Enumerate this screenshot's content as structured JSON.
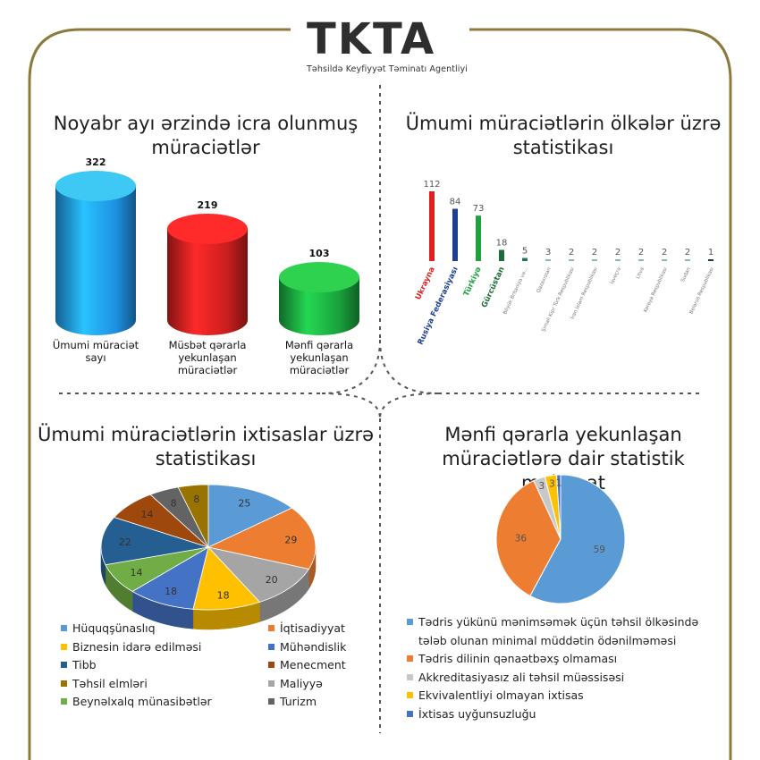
{
  "brand": {
    "logo_text": "TKTA",
    "subtitle": "Təhsildə Keyfiyyət Təminatı Agentliyi"
  },
  "colors": {
    "frame": "#8c7a3c",
    "divider": "#555555"
  },
  "panels": {
    "top_left_title": "Noyabr ayı ərzində icra olunmuş müraciətlər",
    "top_right_title": "Ümumi müraciətlərin ölkələr üzrə statistikası",
    "bottom_left_title": "Ümumi müraciətlərin ixtisaslar üzrə statistikası",
    "bottom_right_title": "Mənfi qərarla yekunlaşan müraciətlərə dair statistik məlumat"
  },
  "chart_data": [
    {
      "type": "bar",
      "title": "Noyabr ayı ərzində icra olunmuş müraciətlər",
      "categories": [
        "Ümumi müraciət sayı",
        "Müsbət qərarla yekunlaşan müraciətlər",
        "Mənfi qərarla yekunlaşan müraciətlər"
      ],
      "values": [
        322,
        219,
        103
      ],
      "colors": [
        "#1e90e0",
        "#c81e1e",
        "#1aa03c"
      ],
      "top_colors": [
        "#3ec9f5",
        "#ff2a2a",
        "#2fd24f"
      ],
      "ylim": [
        0,
        322
      ]
    },
    {
      "type": "bar",
      "title": "Ümumi müraciətlərin ölkələr üzrə statistikası",
      "categories": [
        "Ukrayna",
        "Rusiya Federasiyası",
        "Türkiyə",
        "Gürcüstan",
        "Böyük Britaniya və...",
        "Qazaxıstan",
        "Şimali Kipr Türk Respublikası",
        "İran İslam Respublikası",
        "İsveçrə",
        "Litva",
        "Koreya Respublikası",
        "Sudan",
        "Belarus Respublikası"
      ],
      "values": [
        112,
        84,
        73,
        18,
        5,
        3,
        2,
        2,
        2,
        2,
        2,
        2,
        1
      ],
      "colors": [
        "#e02020",
        "#1c3f94",
        "#20a040",
        "#1d6b3a",
        "#2e7060",
        "#8fb8a8",
        "#8fb8a8",
        "#8fb8a8",
        "#8fb8a8",
        "#8fb8a8",
        "#8fb8a8",
        "#8fb8a8",
        "#1e3a2a"
      ],
      "label_colors": [
        "#e02020",
        "#1c3f94",
        "#20a040",
        "#1d6b3a",
        "#777777",
        "#777777",
        "#777777",
        "#777777",
        "#777777",
        "#777777",
        "#777777",
        "#777777",
        "#777777"
      ],
      "ylim": [
        0,
        112
      ]
    },
    {
      "type": "pie",
      "title": "Ümumi müraciətlərin ixtisaslar üzrə statistikası",
      "slices": [
        {
          "name": "Hüquqşünaslıq",
          "value": 25,
          "color": "#5b9bd5"
        },
        {
          "name": "İqtisadiyyat",
          "value": 29,
          "color": "#ed7d31"
        },
        {
          "name": "Maliyyə",
          "value": 20,
          "color": "#a5a5a5"
        },
        {
          "name": "Biznesin idarə edilməsi",
          "value": 18,
          "color": "#ffc000"
        },
        {
          "name": "Mühəndislik",
          "value": 18,
          "color": "#4472c4"
        },
        {
          "name": "Beynəlxalq münasibətlər",
          "value": 14,
          "color": "#70ad47"
        },
        {
          "name": "Tibb",
          "value": 22,
          "color": "#255e91"
        },
        {
          "name": "Menecment",
          "value": 14,
          "color": "#9e480e"
        },
        {
          "name": "Turizm",
          "value": 8,
          "color": "#636363"
        },
        {
          "name": "Təhsil elmləri",
          "value": 8,
          "color": "#997300"
        }
      ],
      "legend": [
        {
          "name": "Hüquqşünaslıq",
          "color": "#5b9bd5"
        },
        {
          "name": "İqtisadiyyat",
          "color": "#ed7d31"
        },
        {
          "name": "Biznesin idarə edilməsi",
          "color": "#ffc000"
        },
        {
          "name": "Mühəndislik",
          "color": "#4472c4"
        },
        {
          "name": "Tibb",
          "color": "#255e91"
        },
        {
          "name": "Menecment",
          "color": "#9e480e"
        },
        {
          "name": "Təhsil elmləri",
          "color": "#997300"
        },
        {
          "name": "Maliyyə",
          "color": "#a5a5a5"
        },
        {
          "name": "Beynəlxalq münasibətlər",
          "color": "#70ad47"
        },
        {
          "name": "Turizm",
          "color": "#636363"
        }
      ]
    },
    {
      "type": "pie",
      "title": "Mənfi qərarla yekunlaşan müraciətlərə dair statistik məlumat",
      "slices": [
        {
          "name": "Tədris yükünü mənimsəmək üçün təhsil ölkəsində tələb olunan minimal müddətin ödənilməməsi",
          "value": 59,
          "color": "#5b9bd5"
        },
        {
          "name": "Tədris dilinin qənaətbəxş olmaması",
          "value": 36,
          "color": "#ed7d31"
        },
        {
          "name": "Akkreditasiyasız ali təhsil müəssisəsi",
          "value": 3,
          "color": "#c8c8c8"
        },
        {
          "name": "Ekvivalentliyi olmayan ixtisas",
          "value": 3,
          "color": "#ffc000"
        },
        {
          "name": "İxtisas uyğunsuzluğu",
          "value": 1,
          "color": "#4472c4"
        }
      ],
      "legend": [
        {
          "name": "Tədris yükünü mənimsəmək üçün təhsil ölkəsində",
          "name_cont": "tələb olunan minimal müddətin ödənilməməsi",
          "color": "#5b9bd5"
        },
        {
          "name": "Tədris dilinin qənaətbəxş olmaması",
          "color": "#ed7d31"
        },
        {
          "name": "Akkreditasiyasız ali təhsil müəssisəsi",
          "color": "#c8c8c8"
        },
        {
          "name": "Ekvivalentliyi olmayan ixtisas",
          "color": "#ffc000"
        },
        {
          "name": "İxtisas uyğunsuzluğu",
          "color": "#4472c4"
        }
      ]
    }
  ]
}
